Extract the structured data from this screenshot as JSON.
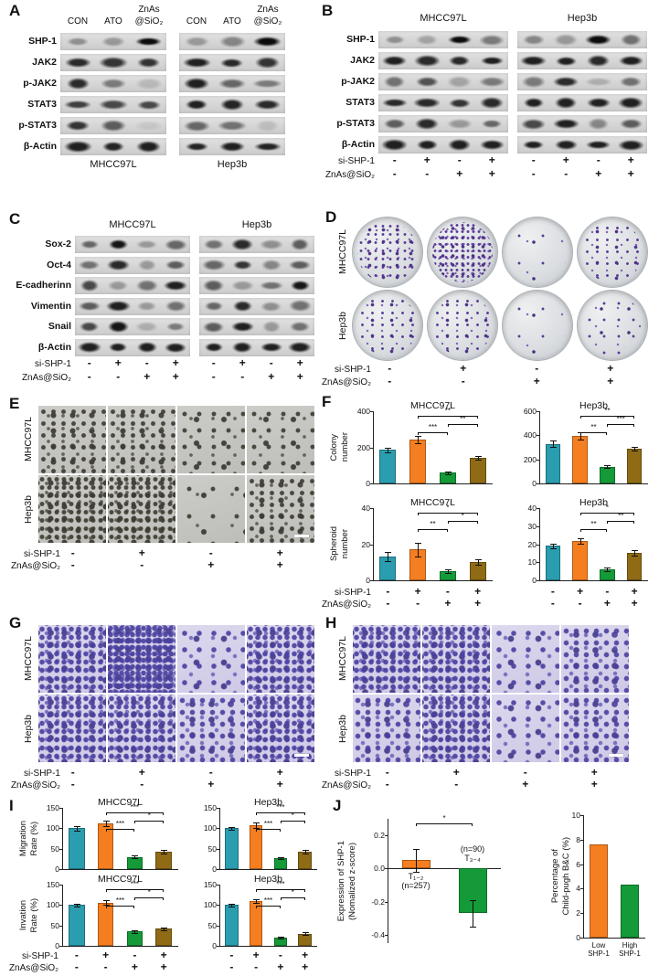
{
  "colors": {
    "teal": "#2a9daf",
    "orange": "#f57e20",
    "green": "#149a38",
    "brown": "#8f6b16"
  },
  "panelA": {
    "label": "A",
    "lane_top": "ZnAs",
    "lanes": [
      "CON",
      "ATO",
      "@SiO₂"
    ],
    "groups": [
      "MHCC97L",
      "Hep3b"
    ],
    "rows": [
      {
        "label": "SHP-1",
        "bands": [
          [
            0.35,
            0.3,
            1
          ],
          [
            0.3,
            0.4,
            1
          ]
        ]
      },
      {
        "label": "JAK2",
        "bands": [
          [
            0.85,
            0.8,
            0.8
          ],
          [
            0.9,
            0.85,
            0.8
          ]
        ]
      },
      {
        "label": "p-JAK2",
        "bands": [
          [
            0.85,
            0.45,
            0.15
          ],
          [
            0.9,
            0.55,
            0.45
          ]
        ]
      },
      {
        "label": "STAT3",
        "bands": [
          [
            0.75,
            0.7,
            0.7
          ],
          [
            0.9,
            0.88,
            0.85
          ]
        ]
      },
      {
        "label": "p-STAT3",
        "bands": [
          [
            0.8,
            0.6,
            0.08
          ],
          [
            0.55,
            0.5,
            0.12
          ]
        ]
      },
      {
        "label": "β-Actin",
        "bands": [
          [
            0.9,
            0.88,
            0.9
          ],
          [
            0.88,
            0.9,
            0.88
          ]
        ]
      }
    ]
  },
  "panelB": {
    "label": "B",
    "groups": [
      "MHCC97L",
      "Hep3b"
    ],
    "rows": [
      {
        "label": "SHP-1",
        "bands": [
          [
            0.35,
            0.25,
            1,
            0.45
          ],
          [
            0.4,
            0.3,
            1,
            0.5
          ]
        ]
      },
      {
        "label": "JAK2",
        "bands": [
          [
            0.9,
            0.85,
            0.85,
            0.9
          ],
          [
            0.9,
            0.9,
            0.85,
            0.9
          ]
        ]
      },
      {
        "label": "p-JAK2",
        "bands": [
          [
            0.5,
            0.65,
            0.25,
            0.45
          ],
          [
            0.45,
            0.85,
            0.2,
            0.5
          ]
        ]
      },
      {
        "label": "STAT3",
        "bands": [
          [
            0.85,
            0.85,
            0.8,
            0.85
          ],
          [
            0.9,
            0.9,
            0.9,
            0.9
          ]
        ]
      },
      {
        "label": "p-STAT3",
        "bands": [
          [
            0.6,
            0.85,
            0.3,
            0.55
          ],
          [
            0.7,
            0.9,
            0.4,
            0.6
          ]
        ]
      },
      {
        "label": "β-Actin",
        "bands": [
          [
            0.9,
            0.9,
            0.9,
            0.9
          ],
          [
            0.9,
            0.9,
            0.9,
            0.9
          ]
        ]
      }
    ],
    "sign_rows": [
      {
        "label": "si-SHP-1",
        "groups": [
          [
            "-",
            "+",
            "-",
            "+"
          ],
          [
            "-",
            "+",
            "-",
            "+"
          ]
        ]
      },
      {
        "label": "ZnAs@SiO₂",
        "groups": [
          [
            "-",
            "-",
            "+",
            "+"
          ],
          [
            "-",
            "-",
            "+",
            "+"
          ]
        ]
      }
    ]
  },
  "panelC": {
    "label": "C",
    "groups": [
      "MHCC97L",
      "Hep3b"
    ],
    "rows": [
      {
        "label": "Sox-2",
        "bands": [
          [
            0.55,
            0.95,
            0.3,
            0.55
          ],
          [
            0.5,
            0.85,
            0.35,
            0.6
          ]
        ]
      },
      {
        "label": "Oct-4",
        "bands": [
          [
            0.5,
            0.85,
            0.3,
            0.6
          ],
          [
            0.55,
            0.8,
            0.4,
            0.6
          ]
        ]
      },
      {
        "label": "E-cadherinn",
        "bands": [
          [
            0.7,
            0.3,
            0.5,
            0.9
          ],
          [
            0.6,
            0.3,
            0.5,
            0.95
          ]
        ]
      },
      {
        "label": "Vimentin",
        "bands": [
          [
            0.6,
            0.9,
            0.3,
            0.5
          ],
          [
            0.55,
            0.85,
            0.35,
            0.5
          ]
        ]
      },
      {
        "label": "Snail",
        "bands": [
          [
            0.7,
            0.95,
            0.2,
            0.45
          ],
          [
            0.6,
            0.9,
            0.3,
            0.5
          ]
        ]
      },
      {
        "label": "β-Actin",
        "bands": [
          [
            0.9,
            0.9,
            0.9,
            0.9
          ],
          [
            0.9,
            0.9,
            0.9,
            0.9
          ]
        ]
      }
    ],
    "sign_rows": [
      {
        "label": "si-SHP-1",
        "groups": [
          [
            "-",
            "+",
            "-",
            "+"
          ],
          [
            "-",
            "+",
            "-",
            "+"
          ]
        ]
      },
      {
        "label": "ZnAs@SiO₂",
        "groups": [
          [
            "-",
            "-",
            "+",
            "+"
          ],
          [
            "-",
            "-",
            "+",
            "+"
          ]
        ]
      }
    ]
  },
  "panelD": {
    "label": "D",
    "row_labels": [
      "MHCC97L",
      "Hep3b"
    ],
    "densities": [
      [
        4,
        5,
        1,
        3
      ],
      [
        3,
        3,
        1,
        2
      ]
    ],
    "sign_rows": [
      {
        "label": "si-SHP-1",
        "groups": [
          [
            "-",
            "+",
            "-",
            "+"
          ]
        ]
      },
      {
        "label": "ZnAs@SiO₂",
        "groups": [
          [
            "-",
            "-",
            "+",
            "+"
          ]
        ]
      }
    ]
  },
  "panelE": {
    "label": "E",
    "row_labels": [
      "MHCC97L",
      "Hep3b"
    ],
    "densities": [
      [
        3,
        3,
        2,
        2
      ],
      [
        4,
        4,
        1,
        3
      ]
    ],
    "sign_rows": [
      {
        "label": "si-SHP-1",
        "groups": [
          [
            "-",
            "+",
            "-",
            "+"
          ]
        ]
      },
      {
        "label": "ZnAs@SiO₂",
        "groups": [
          [
            "-",
            "-",
            "+",
            "+"
          ]
        ]
      }
    ]
  },
  "panelF": {
    "label": "F",
    "sign_rows": [
      {
        "label": "si-SHP-1",
        "groups": [
          [
            "-",
            "+",
            "-",
            "+"
          ],
          [
            "-",
            "+",
            "-",
            "+"
          ]
        ]
      },
      {
        "label": "ZnAs@SiO₂",
        "groups": [
          [
            "-",
            "-",
            "+",
            "+"
          ],
          [
            "-",
            "-",
            "+",
            "+"
          ]
        ]
      }
    ]
  },
  "panelG": {
    "label": "G",
    "row_labels": [
      "MHCC97L",
      "Hep3b"
    ],
    "densities": [
      [
        4,
        5,
        2,
        4
      ],
      [
        4,
        4,
        3,
        4
      ]
    ],
    "sign_rows": [
      {
        "label": "si-SHP-1",
        "groups": [
          [
            "-",
            "+",
            "-",
            "+"
          ]
        ]
      },
      {
        "label": "ZnAs@SiO₂",
        "groups": [
          [
            "-",
            "-",
            "+",
            "+"
          ]
        ]
      }
    ]
  },
  "panelH": {
    "label": "H",
    "row_labels": [
      "MHCC97L",
      "Hep3b"
    ],
    "densities": [
      [
        4,
        4,
        2,
        3
      ],
      [
        3,
        4,
        2,
        3
      ]
    ],
    "sign_rows": [
      {
        "label": "si-SHP-1",
        "groups": [
          [
            "-",
            "+",
            "-",
            "+"
          ]
        ]
      },
      {
        "label": "ZnAs@SiO₂",
        "groups": [
          [
            "-",
            "-",
            "+",
            "+"
          ]
        ]
      }
    ]
  },
  "panelI": {
    "label": "I",
    "sign_rows": [
      {
        "label": "si-SHP-1",
        "groups": [
          [
            "-",
            "+",
            "-",
            "+"
          ],
          [
            "-",
            "+",
            "-",
            "+"
          ]
        ]
      },
      {
        "label": "ZnAs@SiO₂",
        "groups": [
          [
            "-",
            "-",
            "+",
            "+"
          ],
          [
            "-",
            "-",
            "+",
            "+"
          ]
        ]
      }
    ]
  },
  "panelJ": {
    "label": "J"
  },
  "chart_data": [
    {
      "id": "F1",
      "type": "bar",
      "title": "MHCC97L",
      "ylabel": [
        "Colony",
        "number"
      ],
      "ylim": [
        0,
        400
      ],
      "yticks": [
        0,
        200,
        400
      ],
      "values": [
        185,
        242,
        60,
        140
      ],
      "errors": [
        14,
        20,
        8,
        10
      ],
      "bar_colors": [
        "teal",
        "orange",
        "green",
        "brown"
      ],
      "sig": [
        {
          "a": 1,
          "b": 2,
          "label": "***"
        },
        {
          "a": 2,
          "b": 3,
          "label": "**"
        },
        {
          "a": 1,
          "b": 3,
          "label": "**"
        }
      ]
    },
    {
      "id": "F2",
      "type": "bar",
      "title": "Hep3b",
      "ylim": [
        0,
        600
      ],
      "yticks": [
        0,
        200,
        400,
        600
      ],
      "values": [
        330,
        395,
        140,
        290
      ],
      "errors": [
        25,
        28,
        12,
        14
      ],
      "bar_colors": [
        "teal",
        "orange",
        "green",
        "brown"
      ],
      "sig": [
        {
          "a": 1,
          "b": 2,
          "label": "**"
        },
        {
          "a": 2,
          "b": 3,
          "label": "***"
        },
        {
          "a": 1,
          "b": 3,
          "label": "**"
        }
      ]
    },
    {
      "id": "F3",
      "type": "bar",
      "title": "MHCC97L",
      "ylabel": [
        "Spheroid",
        "number"
      ],
      "ylim": [
        0,
        40
      ],
      "yticks": [
        0,
        20,
        40
      ],
      "values": [
        13,
        17,
        5,
        10
      ],
      "errors": [
        2.5,
        4,
        1,
        1.5
      ],
      "bar_colors": [
        "teal",
        "orange",
        "green",
        "brown"
      ],
      "sig": [
        {
          "a": 1,
          "b": 2,
          "label": "**"
        },
        {
          "a": 2,
          "b": 3,
          "label": "*"
        },
        {
          "a": 1,
          "b": 3,
          "label": "*"
        }
      ]
    },
    {
      "id": "F4",
      "type": "bar",
      "title": "Hep3b",
      "ylim": [
        0,
        40
      ],
      "yticks": [
        0,
        10,
        20,
        30,
        40
      ],
      "values": [
        19,
        22,
        6,
        15
      ],
      "errors": [
        1.5,
        1.5,
        1,
        1.5
      ],
      "bar_colors": [
        "teal",
        "orange",
        "green",
        "brown"
      ],
      "sig": [
        {
          "a": 1,
          "b": 2,
          "label": "**"
        },
        {
          "a": 2,
          "b": 3,
          "label": "**"
        },
        {
          "a": 1,
          "b": 3,
          "label": "*"
        }
      ]
    },
    {
      "id": "I1",
      "type": "bar",
      "title": "MHCC97L",
      "ylabel": [
        "Migration",
        "Rate (%)"
      ],
      "ylim": [
        0,
        150
      ],
      "yticks": [
        0,
        50,
        100,
        150
      ],
      "values": [
        100,
        112,
        30,
        42
      ],
      "errors": [
        5,
        6,
        4,
        4
      ],
      "bar_colors": [
        "teal",
        "orange",
        "green",
        "brown"
      ],
      "sig": [
        {
          "a": 1,
          "b": 2,
          "label": "***"
        },
        {
          "a": 2,
          "b": 3,
          "label": "*"
        },
        {
          "a": 1,
          "b": 3,
          "label": "***"
        }
      ]
    },
    {
      "id": "I2",
      "type": "bar",
      "title": "Hep3b",
      "ylim": [
        0,
        150
      ],
      "yticks": [
        0,
        50,
        100,
        150
      ],
      "values": [
        100,
        108,
        27,
        43
      ],
      "errors": [
        4,
        7,
        3,
        4
      ],
      "bar_colors": [
        "teal",
        "orange",
        "green",
        "brown"
      ],
      "sig": [
        {
          "a": 1,
          "b": 2,
          "label": "***"
        },
        {
          "a": 2,
          "b": 3,
          "label": "*"
        },
        {
          "a": 1,
          "b": 3,
          "label": "***"
        }
      ]
    },
    {
      "id": "I3",
      "type": "bar",
      "title": "MHCC97L",
      "ylabel": [
        "Invation",
        "Rate (%)"
      ],
      "ylim": [
        0,
        150
      ],
      "yticks": [
        0,
        50,
        100,
        150
      ],
      "values": [
        100,
        106,
        35,
        42
      ],
      "errors": [
        4,
        5,
        3,
        3
      ],
      "bar_colors": [
        "teal",
        "orange",
        "green",
        "brown"
      ],
      "sig": [
        {
          "a": 1,
          "b": 2,
          "label": "***"
        },
        {
          "a": 2,
          "b": 3,
          "label": "*"
        },
        {
          "a": 1,
          "b": 3,
          "label": "***"
        }
      ]
    },
    {
      "id": "I4",
      "type": "bar",
      "title": "Hep3b",
      "ylim": [
        0,
        150
      ],
      "yticks": [
        0,
        50,
        100,
        150
      ],
      "values": [
        100,
        110,
        20,
        30
      ],
      "errors": [
        4,
        5,
        2,
        3
      ],
      "bar_colors": [
        "teal",
        "orange",
        "green",
        "brown"
      ],
      "sig": [
        {
          "a": 1,
          "b": 2,
          "label": "***"
        },
        {
          "a": 2,
          "b": 3,
          "label": "*"
        },
        {
          "a": 1,
          "b": 3,
          "label": "***"
        }
      ]
    },
    {
      "id": "J1",
      "type": "bar",
      "ylabel": [
        "Expression of SHP-1",
        "(Nomalized z-score)"
      ],
      "ylim": [
        -0.45,
        0.3
      ],
      "yticks": [
        0.2,
        0,
        -0.2,
        -0.4
      ],
      "ytick_labels": [
        "0.2",
        "0.0",
        "-0.2",
        "-0.4"
      ],
      "values": [
        0.05,
        -0.27
      ],
      "errors": [
        0.07,
        0.08
      ],
      "bar_colors": [
        "orange",
        "green"
      ],
      "bar_frac": 0.5,
      "sig": [
        {
          "a": 0,
          "b": 1,
          "label": "*"
        }
      ],
      "annots": [
        [
          "T₁₋₂",
          "(n=257)"
        ],
        [
          "(n=90)",
          "T₃₋₄"
        ]
      ]
    },
    {
      "id": "J2",
      "type": "bar",
      "ylabel": [
        "Percentage of",
        "Child-pugh B&C (%)"
      ],
      "ylim": [
        0,
        10
      ],
      "yticks": [
        0,
        2,
        4,
        6,
        8,
        10
      ],
      "values": [
        7.6,
        4.3
      ],
      "bar_colors": [
        "orange",
        "green"
      ],
      "bar_frac": 0.6,
      "xlabels": [
        "Low SHP-1",
        "High SHP-1"
      ]
    }
  ]
}
